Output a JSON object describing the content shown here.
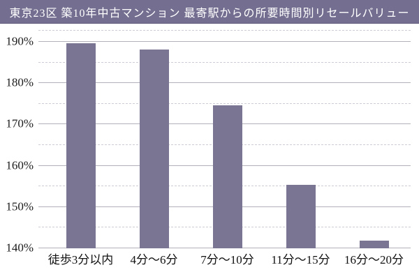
{
  "title": {
    "text": "東京23区 築10年中古マンション 最寄駅からの所要時間別リセールバリュー"
  },
  "colors": {
    "title_background": "#746e90",
    "title_text": "#ffffff",
    "bar_fill": "#7b7594",
    "major_gridline": "#b1b1ba",
    "minor_gridline": "#ccccd6",
    "axis_text": "#1c1c1c",
    "background": "#ffffff"
  },
  "chart_data": {
    "type": "bar",
    "title": "東京23区 築10年中古マンション 最寄駅からの所要時間別リセールバリュー",
    "categories": [
      "徒歩3分以内",
      "4分〜6分",
      "7分〜10分",
      "11分〜15分",
      "16分〜20分"
    ],
    "values": [
      189.7,
      188.2,
      174.7,
      155.3,
      141.9
    ],
    "xlabel": "",
    "ylabel": "",
    "ylim": [
      140,
      190
    ],
    "y_major_step": 10,
    "y_minor_step": 5,
    "y_ticks": [
      {
        "value": 190,
        "label": "190%"
      },
      {
        "value": 180,
        "label": "180%"
      },
      {
        "value": 170,
        "label": "170%"
      },
      {
        "value": 160,
        "label": "160%"
      },
      {
        "value": 150,
        "label": "150%"
      },
      {
        "value": 140,
        "label": "140%"
      }
    ],
    "grid": "horizontal; solid major lines every 10%, dashed minor lines every 5%, dashed top border",
    "legend": "none",
    "unit": "%"
  }
}
